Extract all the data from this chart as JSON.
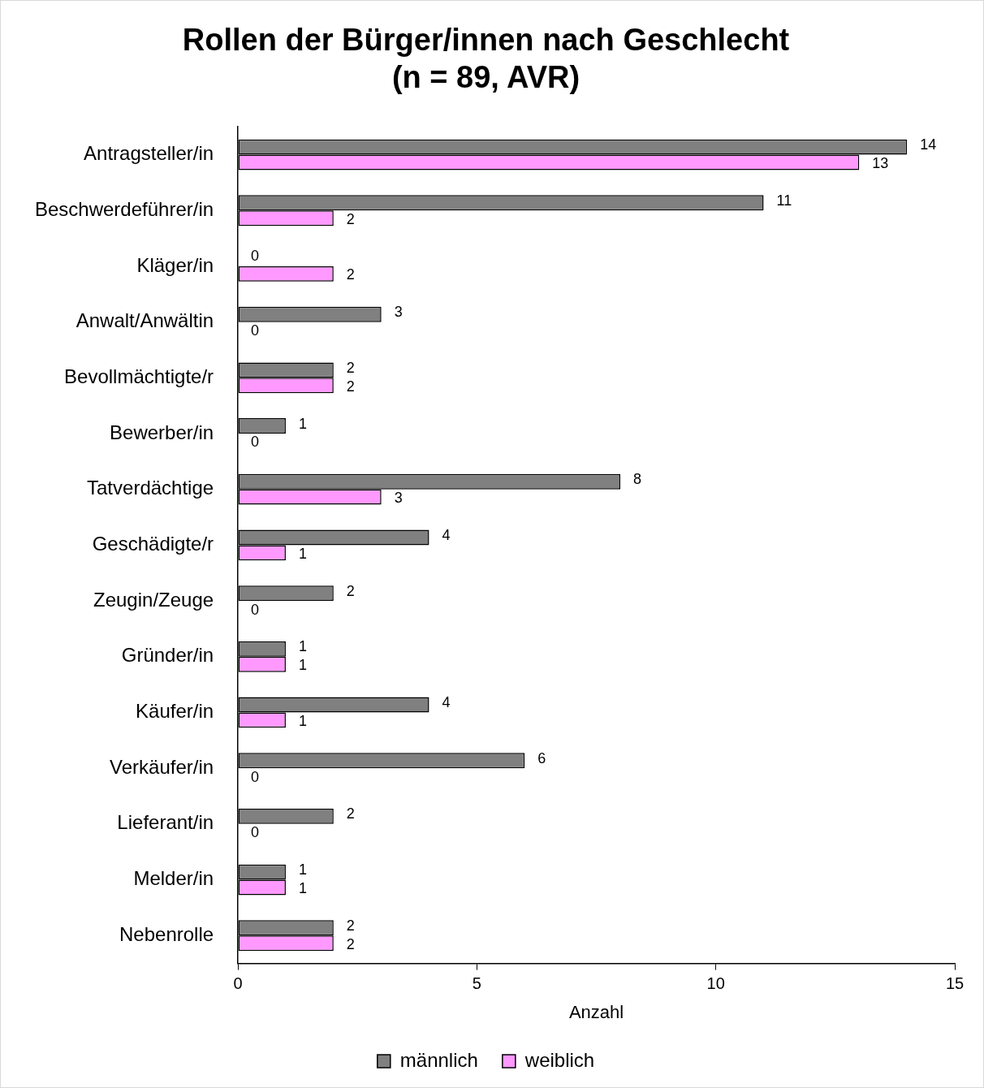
{
  "chart_data": {
    "type": "bar",
    "orientation": "horizontal",
    "title": "Rollen der Bürger/innen nach Geschlecht\n(n = 89, AVR)",
    "xlabel": "Anzahl",
    "categories": [
      "Antragsteller/in",
      "Beschwerdeführer/in",
      "Kläger/in",
      "Anwalt/Anwältin",
      "Bevollmächtigte/r",
      "Bewerber/in",
      "Tatverdächtige",
      "Geschädigte/r",
      "Zeugin/Zeuge",
      "Gründer/in",
      "Käufer/in",
      "Verkäufer/in",
      "Lieferant/in",
      "Melder/in",
      "Nebenrolle"
    ],
    "series": [
      {
        "name": "männlich",
        "color": "#808080",
        "values": [
          14,
          11,
          0,
          3,
          2,
          1,
          8,
          4,
          2,
          1,
          4,
          6,
          2,
          1,
          2
        ]
      },
      {
        "name": "weiblich",
        "color": "#ff99ff",
        "values": [
          13,
          2,
          2,
          0,
          2,
          0,
          3,
          1,
          0,
          1,
          1,
          0,
          0,
          1,
          2
        ]
      }
    ],
    "xlim": [
      0,
      15
    ],
    "xticks": [
      0,
      5,
      10,
      15
    ],
    "grid": false,
    "legend": "bottom",
    "data_labels": true
  }
}
